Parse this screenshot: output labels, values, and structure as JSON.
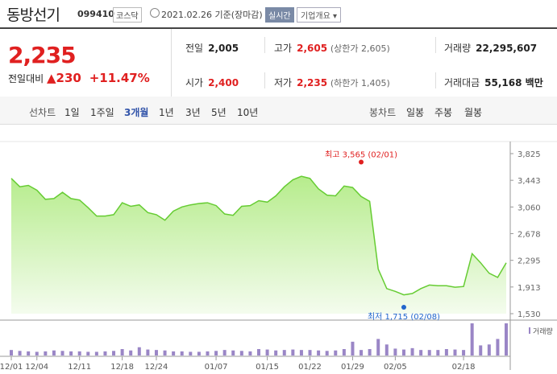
{
  "header": {
    "stock_name": "동방선기",
    "code": "099410",
    "market": "코스닥",
    "as_of": "2021.02.26 기준(장마감)",
    "realtime_label": "실시간",
    "company_info_label": "기업개요 ▾"
  },
  "quote": {
    "price": "2,235",
    "change_label": "전일대비",
    "change_arrow": "▲",
    "change_value": "230",
    "change_pct": "+11.47%",
    "prev_close_label": "전일",
    "prev_close": "2,005",
    "high_label": "고가",
    "high": "2,605",
    "upper_limit": "(상한가 2,605)",
    "volume_label": "거래량",
    "volume": "22,295,607",
    "open_label": "시가",
    "open": "2,400",
    "low_label": "저가",
    "low": "2,235",
    "lower_limit": "(하한가 1,405)",
    "amount_label": "거래대금",
    "amount": "55,168 백만"
  },
  "tabs": {
    "line_label": "선차트",
    "line_items": [
      "1일",
      "1주일",
      "3개월",
      "1년",
      "3년",
      "5년",
      "10년"
    ],
    "active_line": "3개월",
    "candle_label": "봉차트",
    "candle_items": [
      "일봉",
      "주봉",
      "월봉"
    ]
  },
  "colors": {
    "up": "#e02020",
    "line": "#66cc33",
    "area_top": "#b6ec8c",
    "volume": "#9a86c6",
    "low_marker": "#2266cc"
  },
  "chart_data": {
    "type": "area",
    "y_ticks": [
      "3,825",
      "3,443",
      "3,060",
      "2,678",
      "2,295",
      "1,913",
      "1,530"
    ],
    "ylim": [
      1530,
      3825
    ],
    "x_ticks": [
      "12/01",
      "12/04",
      "12/11",
      "12/18",
      "12/24",
      "01/07",
      "01/15",
      "01/22",
      "01/29",
      "02/05",
      "02/18"
    ],
    "x_tick_index": [
      0,
      3,
      8,
      13,
      17,
      24,
      30,
      35,
      40,
      45,
      53
    ],
    "high_annotation": "최고 3,565 (02/01)",
    "high_index": 41,
    "high_value": 3565,
    "low_annotation": "최저 1,715 (02/08)",
    "low_index": 46,
    "low_value": 1715,
    "volume_label": "거래량",
    "prices": [
      3470,
      3350,
      3370,
      3300,
      3170,
      3180,
      3270,
      3180,
      3160,
      3050,
      2930,
      2930,
      2950,
      3120,
      3070,
      3090,
      2980,
      2950,
      2870,
      3000,
      3060,
      3090,
      3110,
      3120,
      3080,
      2960,
      2940,
      3070,
      3080,
      3150,
      3130,
      3220,
      3350,
      3450,
      3500,
      3470,
      3320,
      3230,
      3220,
      3360,
      3340,
      3210,
      3140,
      2170,
      1890,
      1850,
      1800,
      1820,
      1890,
      1940,
      1930,
      1930,
      1910,
      1920,
      2390,
      2260,
      2110,
      2050,
      2260
    ],
    "volumes": [
      12,
      10,
      9,
      8,
      9,
      11,
      10,
      9,
      9,
      8,
      8,
      9,
      10,
      14,
      11,
      18,
      13,
      12,
      11,
      9,
      9,
      8,
      8,
      9,
      10,
      12,
      11,
      10,
      9,
      14,
      13,
      11,
      12,
      13,
      12,
      12,
      11,
      10,
      11,
      14,
      30,
      12,
      14,
      36,
      24,
      15,
      13,
      16,
      12,
      12,
      12,
      14,
      13,
      12,
      70,
      22,
      24,
      36,
      70
    ]
  }
}
